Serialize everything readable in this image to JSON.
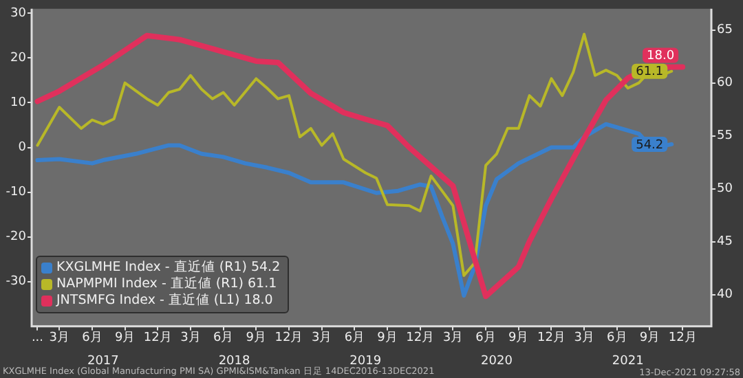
{
  "chart_data": {
    "type": "line",
    "series": [
      {
        "name": "KXGLMHE Index - 直近値 (R1) 54.2",
        "color": "#3a80cc",
        "axis": "y2",
        "x": [
          "2017-01",
          "2017-03",
          "2017-06",
          "2017-07",
          "2017-10",
          "2018-01",
          "2018-02",
          "2018-04",
          "2018-06",
          "2018-08",
          "2018-10",
          "2018-12",
          "2019-02",
          "2019-05",
          "2019-08",
          "2019-10",
          "2019-12",
          "2020-01",
          "2020-02",
          "2020-03",
          "2020-04",
          "2020-05",
          "2020-06",
          "2020-07",
          "2020-09",
          "2020-12",
          "2021-02",
          "2021-03",
          "2021-05",
          "2021-07",
          "2021-08",
          "2021-09",
          "2021-10",
          "2021-11"
        ],
        "values": [
          52.7,
          52.8,
          52.4,
          52.7,
          53.3,
          54.1,
          54.1,
          53.3,
          53,
          52.4,
          52,
          51.5,
          50.6,
          50.6,
          49.6,
          49.8,
          50.4,
          50.2,
          47.4,
          44.8,
          39.9,
          42.7,
          48.4,
          50.9,
          52.4,
          53.9,
          53.9,
          54.9,
          56.1,
          55.5,
          55.2,
          54.1,
          54,
          54.2
        ],
        "value_labels": [
          null,
          null,
          null,
          null,
          null,
          null,
          null,
          null,
          null,
          null,
          null,
          null,
          null,
          null,
          null,
          null,
          null,
          null,
          null,
          null,
          null,
          null,
          null,
          null,
          null,
          null,
          null,
          null,
          null,
          null,
          null,
          null,
          null,
          "54.2"
        ]
      },
      {
        "name": "NAPMPMI Index - 直近値 (R1) 61.1",
        "color": "#b8b828",
        "axis": "y2",
        "x": [
          "2017-01",
          "2017-03",
          "2017-05",
          "2017-06",
          "2017-07",
          "2017-08",
          "2017-09",
          "2017-11",
          "2017-12",
          "2018-01",
          "2018-02",
          "2018-03",
          "2018-04",
          "2018-05",
          "2018-06",
          "2018-07",
          "2018-09",
          "2018-10",
          "2018-11",
          "2018-12",
          "2019-01",
          "2019-02",
          "2019-03",
          "2019-04",
          "2019-05",
          "2019-07",
          "2019-08",
          "2019-09",
          "2019-11",
          "2019-12",
          "2020-01",
          "2020-02",
          "2020-03",
          "2020-04",
          "2020-05",
          "2020-06",
          "2020-07",
          "2020-08",
          "2020-09",
          "2020-10",
          "2020-11",
          "2020-12",
          "2021-01",
          "2021-02",
          "2021-03",
          "2021-04",
          "2021-05",
          "2021-06",
          "2021-07",
          "2021-08",
          "2021-09",
          "2021-10",
          "2021-11"
        ],
        "values": [
          54.1,
          57.7,
          55.7,
          56.5,
          56.1,
          56.6,
          60,
          58.5,
          57.9,
          59.1,
          59.4,
          60.7,
          59.4,
          58.5,
          59.1,
          57.9,
          60.4,
          59.5,
          58.5,
          58.8,
          54.9,
          55.7,
          54.1,
          55.2,
          52.8,
          51.5,
          51,
          48.5,
          48.4,
          47.9,
          51.2,
          49.8,
          48.4,
          41.8,
          43,
          52.2,
          53.3,
          55.7,
          55.7,
          58.8,
          57.8,
          60.4,
          58.8,
          61,
          64.6,
          60.7,
          61.2,
          60.7,
          59.5,
          60,
          61.1,
          60.7,
          61.1
        ],
        "value_labels": [
          null,
          null,
          null,
          null,
          null,
          null,
          null,
          null,
          null,
          null,
          null,
          null,
          null,
          null,
          null,
          null,
          null,
          null,
          null,
          null,
          null,
          null,
          null,
          null,
          null,
          null,
          null,
          null,
          null,
          null,
          null,
          null,
          null,
          null,
          null,
          null,
          null,
          null,
          null,
          null,
          null,
          null,
          null,
          null,
          null,
          null,
          null,
          null,
          null,
          null,
          null,
          null,
          "61.1"
        ]
      },
      {
        "name": "JNTSMFG Index - 直近値 (L1) 18.0",
        "color": "#e0305c",
        "x": [
          "2017-01",
          "2017-03",
          "2017-07",
          "2017-11",
          "2018-02",
          "2018-07",
          "2018-09",
          "2018-11",
          "2019-02",
          "2019-05",
          "2019-07",
          "2019-09",
          "2019-11",
          "2020-03",
          "2020-06",
          "2020-09",
          "2020-10",
          "2020-12",
          "2021-03",
          "2021-05",
          "2021-07",
          "2021-09",
          "2021-12"
        ],
        "values": [
          10.3,
          12.6,
          18.4,
          25,
          24.1,
          20.7,
          19.3,
          19,
          12.1,
          7.8,
          6.3,
          4.9,
          0,
          -8.6,
          -33.3,
          -26.7,
          -21,
          -11.5,
          2,
          10.6,
          15.5,
          18.0,
          18.0
        ],
        "value_labels": [
          null,
          null,
          null,
          null,
          null,
          null,
          null,
          null,
          null,
          null,
          null,
          null,
          null,
          null,
          null,
          null,
          null,
          null,
          null,
          null,
          null,
          null,
          "18.0"
        ]
      }
    ],
    "xlim": [
      "2016-12-15",
      "2022-02-20"
    ],
    "xticks": [
      {
        "value": "2017-01",
        "label": "..."
      },
      {
        "value": "2017-03",
        "label": "3月"
      },
      {
        "value": "2017-06",
        "label": "6月"
      },
      {
        "value": "2017-09",
        "label": "9月"
      },
      {
        "value": "2017-12",
        "label": "12月"
      },
      {
        "value": "2018-03",
        "label": "3月"
      },
      {
        "value": "2018-06",
        "label": "6月"
      },
      {
        "value": "2018-09",
        "label": "9月"
      },
      {
        "value": "2018-12",
        "label": "12月"
      },
      {
        "value": "2019-03",
        "label": "3月"
      },
      {
        "value": "2019-06",
        "label": "6月"
      },
      {
        "value": "2019-09",
        "label": "9月"
      },
      {
        "value": "2019-12",
        "label": "12月"
      },
      {
        "value": "2020-03",
        "label": "3月"
      },
      {
        "value": "2020-06",
        "label": "6月"
      },
      {
        "value": "2020-09",
        "label": "9月"
      },
      {
        "value": "2020-12",
        "label": "12月"
      },
      {
        "value": "2021-03",
        "label": "3月"
      },
      {
        "value": "2021-06",
        "label": "6月"
      },
      {
        "value": "2021-09",
        "label": "9月"
      },
      {
        "value": "2021-12",
        "label": "12月"
      }
    ],
    "x2lim": [
      "2016-12-15",
      "2022-02-20"
    ],
    "x2ticks": [
      {
        "value": "2017-07",
        "label": "2017"
      },
      {
        "value": "2018-07",
        "label": "2018"
      },
      {
        "value": "2019-07",
        "label": "2019"
      },
      {
        "value": "2020-07",
        "label": "2020"
      },
      {
        "value": "2021-07",
        "label": "2021"
      }
    ],
    "ylim": [
      -40,
      31
    ],
    "yticks": [
      -30,
      -20,
      -10,
      0,
      10,
      20,
      30
    ],
    "y2lim": [
      37,
      67
    ],
    "y2ticks": [
      40,
      45,
      50,
      55,
      60,
      65
    ],
    "grid": false,
    "legend": "bottom left",
    "marker": "none",
    "line_style": "solid",
    "annotations": [
      "KXGLMHE Index (Global Manufacturing PMI SA) GPMI&ISM&Tankan 日足 14DEC2016-13DEC2021",
      "13-Dec-2021 09:27:58"
    ]
  }
}
